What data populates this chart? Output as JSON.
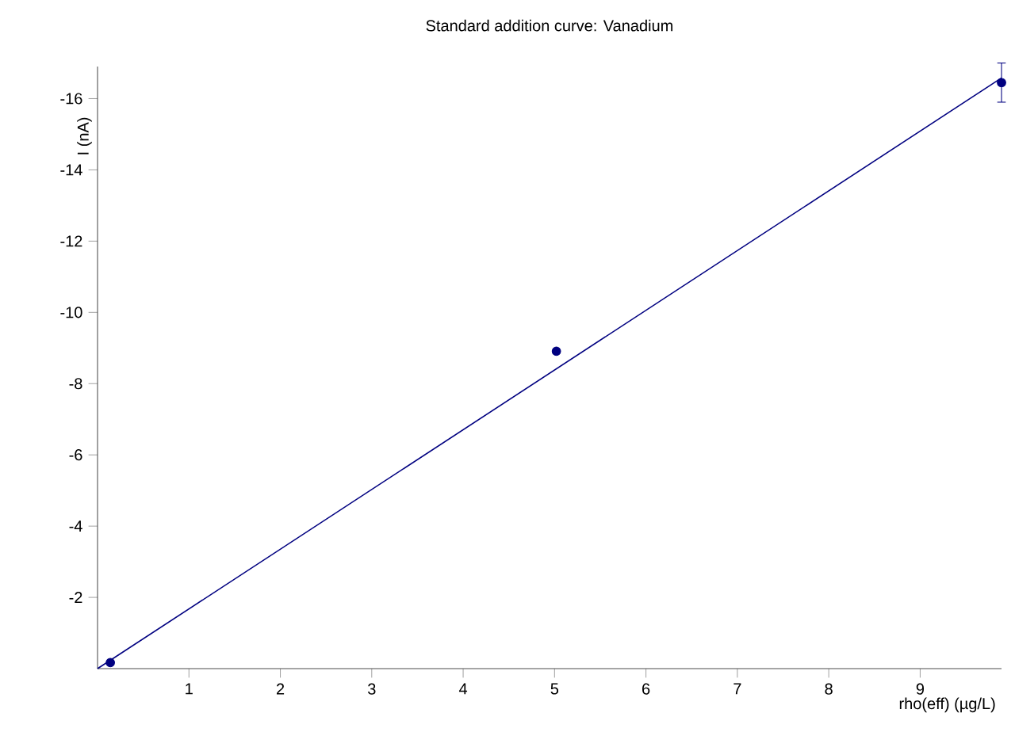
{
  "chart_data": {
    "type": "scatter",
    "title": "Standard addition curve: Vanadium",
    "xlabel": "rho(eff) (µg/L)",
    "ylabel": "I (nA)",
    "xlim": [
      0,
      9.89
    ],
    "xticks": [
      1,
      2,
      3,
      4,
      5,
      6,
      7,
      8,
      9
    ],
    "ylim": [
      0,
      -16.9
    ],
    "yticks": [
      -2,
      -4,
      -6,
      -8,
      -10,
      -12,
      -14,
      -16
    ],
    "grid": false,
    "series": [
      {
        "color": "#000080",
        "marker": "circle",
        "x": [
          0.14,
          5.02,
          9.89
        ],
        "values": [
          -0.17,
          -8.91,
          -16.45
        ],
        "errors": [
          null,
          null,
          0.55
        ]
      },
      {
        "type": "line",
        "color": "#000080",
        "marker": "none",
        "line_style": "solid",
        "x": [
          0,
          9.89
        ],
        "values": [
          0,
          -16.58
        ]
      }
    ]
  }
}
